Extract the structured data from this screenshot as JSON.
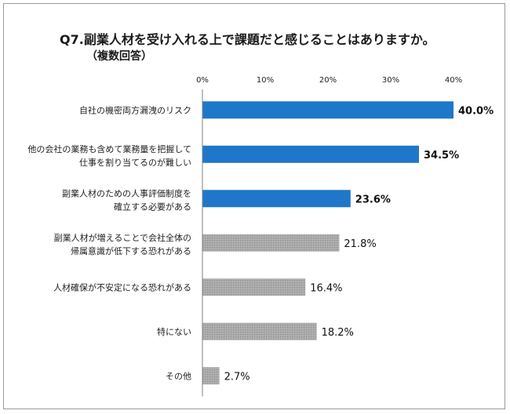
{
  "chart_data": {
    "type": "bar",
    "orientation": "horizontal",
    "title": "Q7.副業人材を受け入れる上で課題だと感じることはありますか。",
    "subtitle": "（複数回答）",
    "categories": [
      [
        "自社の機密両方漏洩のリスク"
      ],
      [
        "他の会社の業務も含めて業務量を把握して",
        "仕事を割り当てるのが難しい"
      ],
      [
        "副業人材のための人事評価制度を",
        "確立する必要がある"
      ],
      [
        "副業人材が増えることで会社全体の",
        "帰属意識が低下する恐れがある"
      ],
      [
        "人材確保が不安定になる恐れがある"
      ],
      [
        "特にない"
      ],
      [
        "その他"
      ]
    ],
    "values": [
      40.0,
      34.5,
      23.6,
      21.8,
      16.4,
      18.2,
      2.7
    ],
    "value_labels": [
      "40.0%",
      "34.5%",
      "23.6%",
      "21.8%",
      "16.4%",
      "18.2%",
      "2.7%"
    ],
    "highlighted": [
      true,
      true,
      true,
      false,
      false,
      false,
      false
    ],
    "x_ticks": [
      0,
      10,
      20,
      30,
      40
    ],
    "x_tick_labels": [
      "0%",
      "10%",
      "20%",
      "30%",
      "40%"
    ],
    "xlim": [
      0,
      40
    ],
    "grid": false,
    "legend": "none",
    "colors": {
      "highlight": "#1f77c9",
      "normal": "#a6a6a6",
      "axis": "#7f7f7f"
    }
  }
}
